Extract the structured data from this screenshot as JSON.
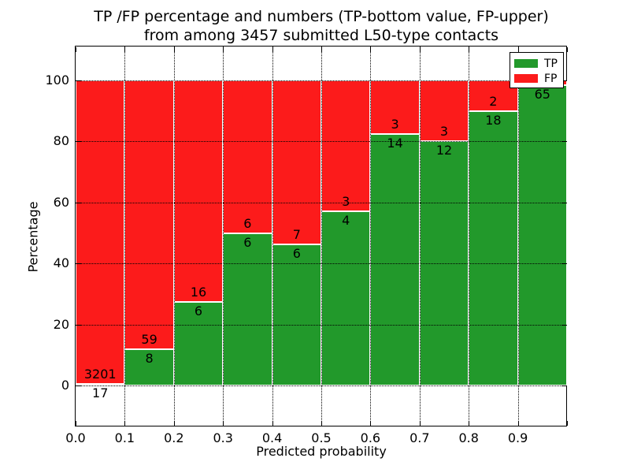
{
  "chart_data": {
    "type": "bar",
    "stacked": true,
    "title_line1": "TP /FP percentage and numbers (TP-bottom value, FP-upper)",
    "title_line2": "from among 3457 submitted L50-type contacts",
    "xlabel": "Predicted probability",
    "ylabel": "Percentage",
    "total_contacts": 3457,
    "note": "Bars stacked to 100%: TP (green) bottom segment, FP (red) upper segment; numeric labels show raw counts at the TP/FP boundary",
    "x_tick_labels": [
      "0.0",
      "0.1",
      "0.2",
      "0.3",
      "0.4",
      "0.5",
      "0.6",
      "0.7",
      "0.8",
      "0.9"
    ],
    "y_tick_values": [
      0,
      20,
      40,
      60,
      80,
      100
    ],
    "xlim": [
      0.0,
      1.0
    ],
    "ylim_percent": [
      0,
      100
    ],
    "grid": true,
    "legend_position": "upper right",
    "bins": [
      {
        "range": "0.0-0.1",
        "tp": 17,
        "fp": 3201
      },
      {
        "range": "0.1-0.2",
        "tp": 8,
        "fp": 59
      },
      {
        "range": "0.2-0.3",
        "tp": 6,
        "fp": 16
      },
      {
        "range": "0.3-0.4",
        "tp": 6,
        "fp": 6
      },
      {
        "range": "0.4-0.5",
        "tp": 6,
        "fp": 7
      },
      {
        "range": "0.5-0.6",
        "tp": 4,
        "fp": 3
      },
      {
        "range": "0.6-0.7",
        "tp": 14,
        "fp": 3
      },
      {
        "range": "0.7-0.8",
        "tp": 12,
        "fp": 3
      },
      {
        "range": "0.8-0.9",
        "tp": 18,
        "fp": 2
      },
      {
        "range": "0.9-1.0",
        "tp": 65,
        "fp": 1
      }
    ],
    "legend": [
      {
        "label": "TP",
        "color": "#22992b"
      },
      {
        "label": "FP",
        "color": "#fc1b1b"
      }
    ]
  }
}
